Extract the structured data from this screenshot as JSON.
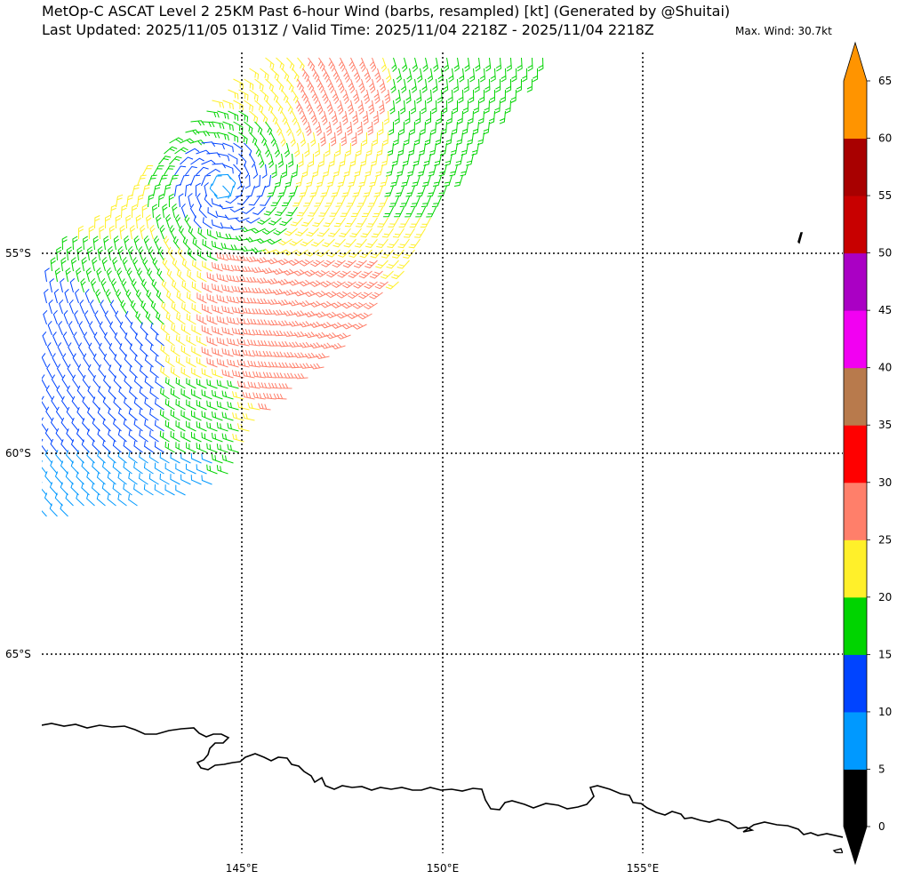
{
  "title_line1": "MetOp-C ASCAT Level 2 25KM Past 6-hour Wind (barbs, resampled) [kt] (Generated by @Shuitai)",
  "title_line2": "Last Updated: 2025/11/05 0131Z / Valid Time: 2025/11/04 2218Z - 2025/11/04 2218Z",
  "max_wind": "Max. Wind: 30.7kt",
  "map": {
    "lat_labels": [
      "55°S",
      "60°S",
      "65°S"
    ],
    "lon_labels": [
      "145°E",
      "150°E",
      "155°E"
    ],
    "gridline_style": "dotted"
  },
  "colorbar": {
    "tick_labels": [
      "0",
      "5",
      "10",
      "15",
      "20",
      "25",
      "30",
      "35",
      "40",
      "45",
      "50",
      "55",
      "60",
      "65"
    ],
    "bins": [
      {
        "from": 0,
        "to": 5,
        "color": "#000000"
      },
      {
        "from": 5,
        "to": 10,
        "color": "#0099ff"
      },
      {
        "from": 10,
        "to": 15,
        "color": "#0044ff"
      },
      {
        "from": 15,
        "to": 20,
        "color": "#00d400"
      },
      {
        "from": 20,
        "to": 25,
        "color": "#fff02a"
      },
      {
        "from": 25,
        "to": 30,
        "color": "#ff7f6a"
      },
      {
        "from": 30,
        "to": 35,
        "color": "#ff0000"
      },
      {
        "from": 35,
        "to": 40,
        "color": "#b87a4c"
      },
      {
        "from": 40,
        "to": 45,
        "color": "#f200f2"
      },
      {
        "from": 45,
        "to": 50,
        "color": "#aa00c4"
      },
      {
        "from": 50,
        "to": 55,
        "color": "#c80000"
      },
      {
        "from": 55,
        "to": 60,
        "color": "#a80000"
      },
      {
        "from": 60,
        "to": 65,
        "color": "#ff9400"
      }
    ],
    "under_color": "#000000",
    "over_color": "#ff9400"
  }
}
